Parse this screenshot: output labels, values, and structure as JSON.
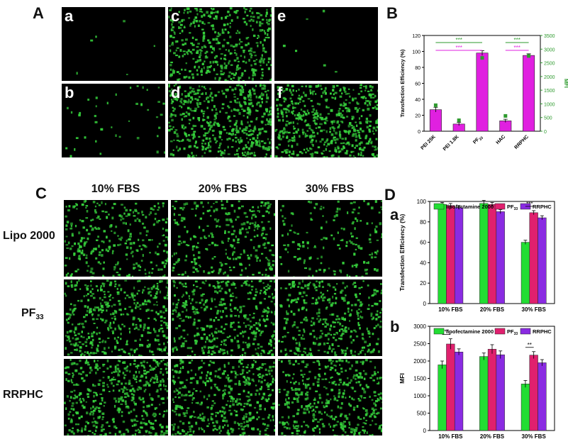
{
  "panels": {
    "A": "A",
    "B": "B",
    "C": "C",
    "D": "D",
    "Da": "a",
    "Db": "b"
  },
  "panel_A": {
    "tiles": [
      {
        "label": "a",
        "density": 6
      },
      {
        "label": "c",
        "density": 420
      },
      {
        "label": "e",
        "density": 6
      },
      {
        "label": "b",
        "density": 40
      },
      {
        "label": "d",
        "density": 520
      },
      {
        "label": "f",
        "density": 540
      }
    ]
  },
  "panel_C": {
    "columns": [
      "10% FBS",
      "20% FBS",
      "30% FBS"
    ],
    "rows": [
      {
        "label_main": "Lipo 2000",
        "label_sub": ""
      },
      {
        "label_main": "PF",
        "label_sub": "33"
      },
      {
        "label_main": "RRPHC",
        "label_sub": ""
      }
    ],
    "densities": [
      [
        300,
        300,
        170
      ],
      [
        430,
        440,
        380
      ],
      [
        460,
        450,
        430
      ]
    ]
  },
  "colors": {
    "green_cell": "#36d13c",
    "magenta": "#e020e0",
    "green_axis": "#2e9a2e",
    "lipo": "#22dd33",
    "pf": "#e0206e",
    "rrphc": "#8a2be2"
  },
  "chart_data": [
    {
      "type": "bar",
      "id": "B",
      "categories": [
        "PEI 25K",
        "PEI 1.8K",
        "PF33",
        "HAC",
        "RRPHC"
      ],
      "category_labels": [
        {
          "main": "PEI 25K",
          "sub": ""
        },
        {
          "main": "PEI 1.8K",
          "sub": ""
        },
        {
          "main": "PF",
          "sub": "33"
        },
        {
          "main": "HAC",
          "sub": ""
        },
        {
          "main": "RRPHC",
          "sub": ""
        }
      ],
      "series": [
        {
          "values": [
            27,
            9,
            98,
            13,
            95
          ],
          "errors": [
            3,
            2,
            3,
            2,
            2
          ],
          "axis": "left"
        },
        {
          "values": [
            950,
            400,
            2680,
            560,
            2750
          ],
          "axis": "right",
          "marker": "square"
        }
      ],
      "ylabel": "Transfection Efficiency (%)",
      "ylabel_right": "MFI",
      "ylim": [
        0,
        120
      ],
      "ylim_right": [
        0,
        3500
      ],
      "yticks": [
        0,
        20,
        40,
        60,
        80,
        100,
        120
      ],
      "yticks_right": [
        0,
        500,
        1000,
        1500,
        2000,
        2500,
        3000,
        3500
      ],
      "significance": [
        {
          "from": 0,
          "to": 2,
          "label": "***",
          "level": "upper"
        },
        {
          "from": 0,
          "to": 2,
          "label": "***",
          "level": "lower"
        },
        {
          "from": 3,
          "to": 4,
          "label": "***",
          "level": "upper"
        },
        {
          "from": 3,
          "to": 4,
          "label": "***",
          "level": "lower"
        }
      ]
    },
    {
      "type": "bar",
      "id": "Da",
      "categories": [
        "10% FBS",
        "20% FBS",
        "30% FBS"
      ],
      "series": [
        {
          "name": "lipofectamine 2000",
          "values": [
            97,
            98,
            60
          ],
          "errors": [
            2,
            3,
            2
          ]
        },
        {
          "name": "PF33",
          "values": [
            96,
            97,
            89
          ],
          "errors": [
            2,
            2,
            2
          ]
        },
        {
          "name": "RRPHC",
          "values": [
            94,
            90,
            84
          ],
          "errors": [
            2,
            2,
            2
          ]
        }
      ],
      "legend_labels": [
        {
          "main": "lipofectamine 2000",
          "sub": ""
        },
        {
          "main": "PF",
          "sub": "33"
        },
        {
          "main": "RRPHC",
          "sub": ""
        }
      ],
      "ylabel": "Transfection Efficiency (%)",
      "ylim": [
        0,
        100
      ],
      "yticks": [
        0,
        20,
        40,
        60,
        80,
        100
      ],
      "significance": [
        {
          "category": 2,
          "label": "***"
        }
      ]
    },
    {
      "type": "bar",
      "id": "Db",
      "categories": [
        "10% FBS",
        "20% FBS",
        "30% FBS"
      ],
      "series": [
        {
          "name": "lipofectamine 2000",
          "values": [
            1890,
            2130,
            1340
          ],
          "errors": [
            110,
            100,
            100
          ]
        },
        {
          "name": "PF33",
          "values": [
            2490,
            2340,
            2170
          ],
          "errors": [
            150,
            130,
            100
          ]
        },
        {
          "name": "RRPHC",
          "values": [
            2260,
            2180,
            1950
          ],
          "errors": [
            90,
            110,
            90
          ]
        }
      ],
      "legend_labels": [
        {
          "main": "lipofectamine 2000",
          "sub": ""
        },
        {
          "main": "PF",
          "sub": "33"
        },
        {
          "main": "RRPHC",
          "sub": ""
        }
      ],
      "ylabel": "MFI",
      "ylim": [
        0,
        3000
      ],
      "yticks": [
        0,
        500,
        1000,
        1500,
        2000,
        2500,
        3000
      ],
      "significance": [
        {
          "category": 0,
          "label": "**"
        },
        {
          "category": 2,
          "label": "**"
        }
      ]
    }
  ]
}
